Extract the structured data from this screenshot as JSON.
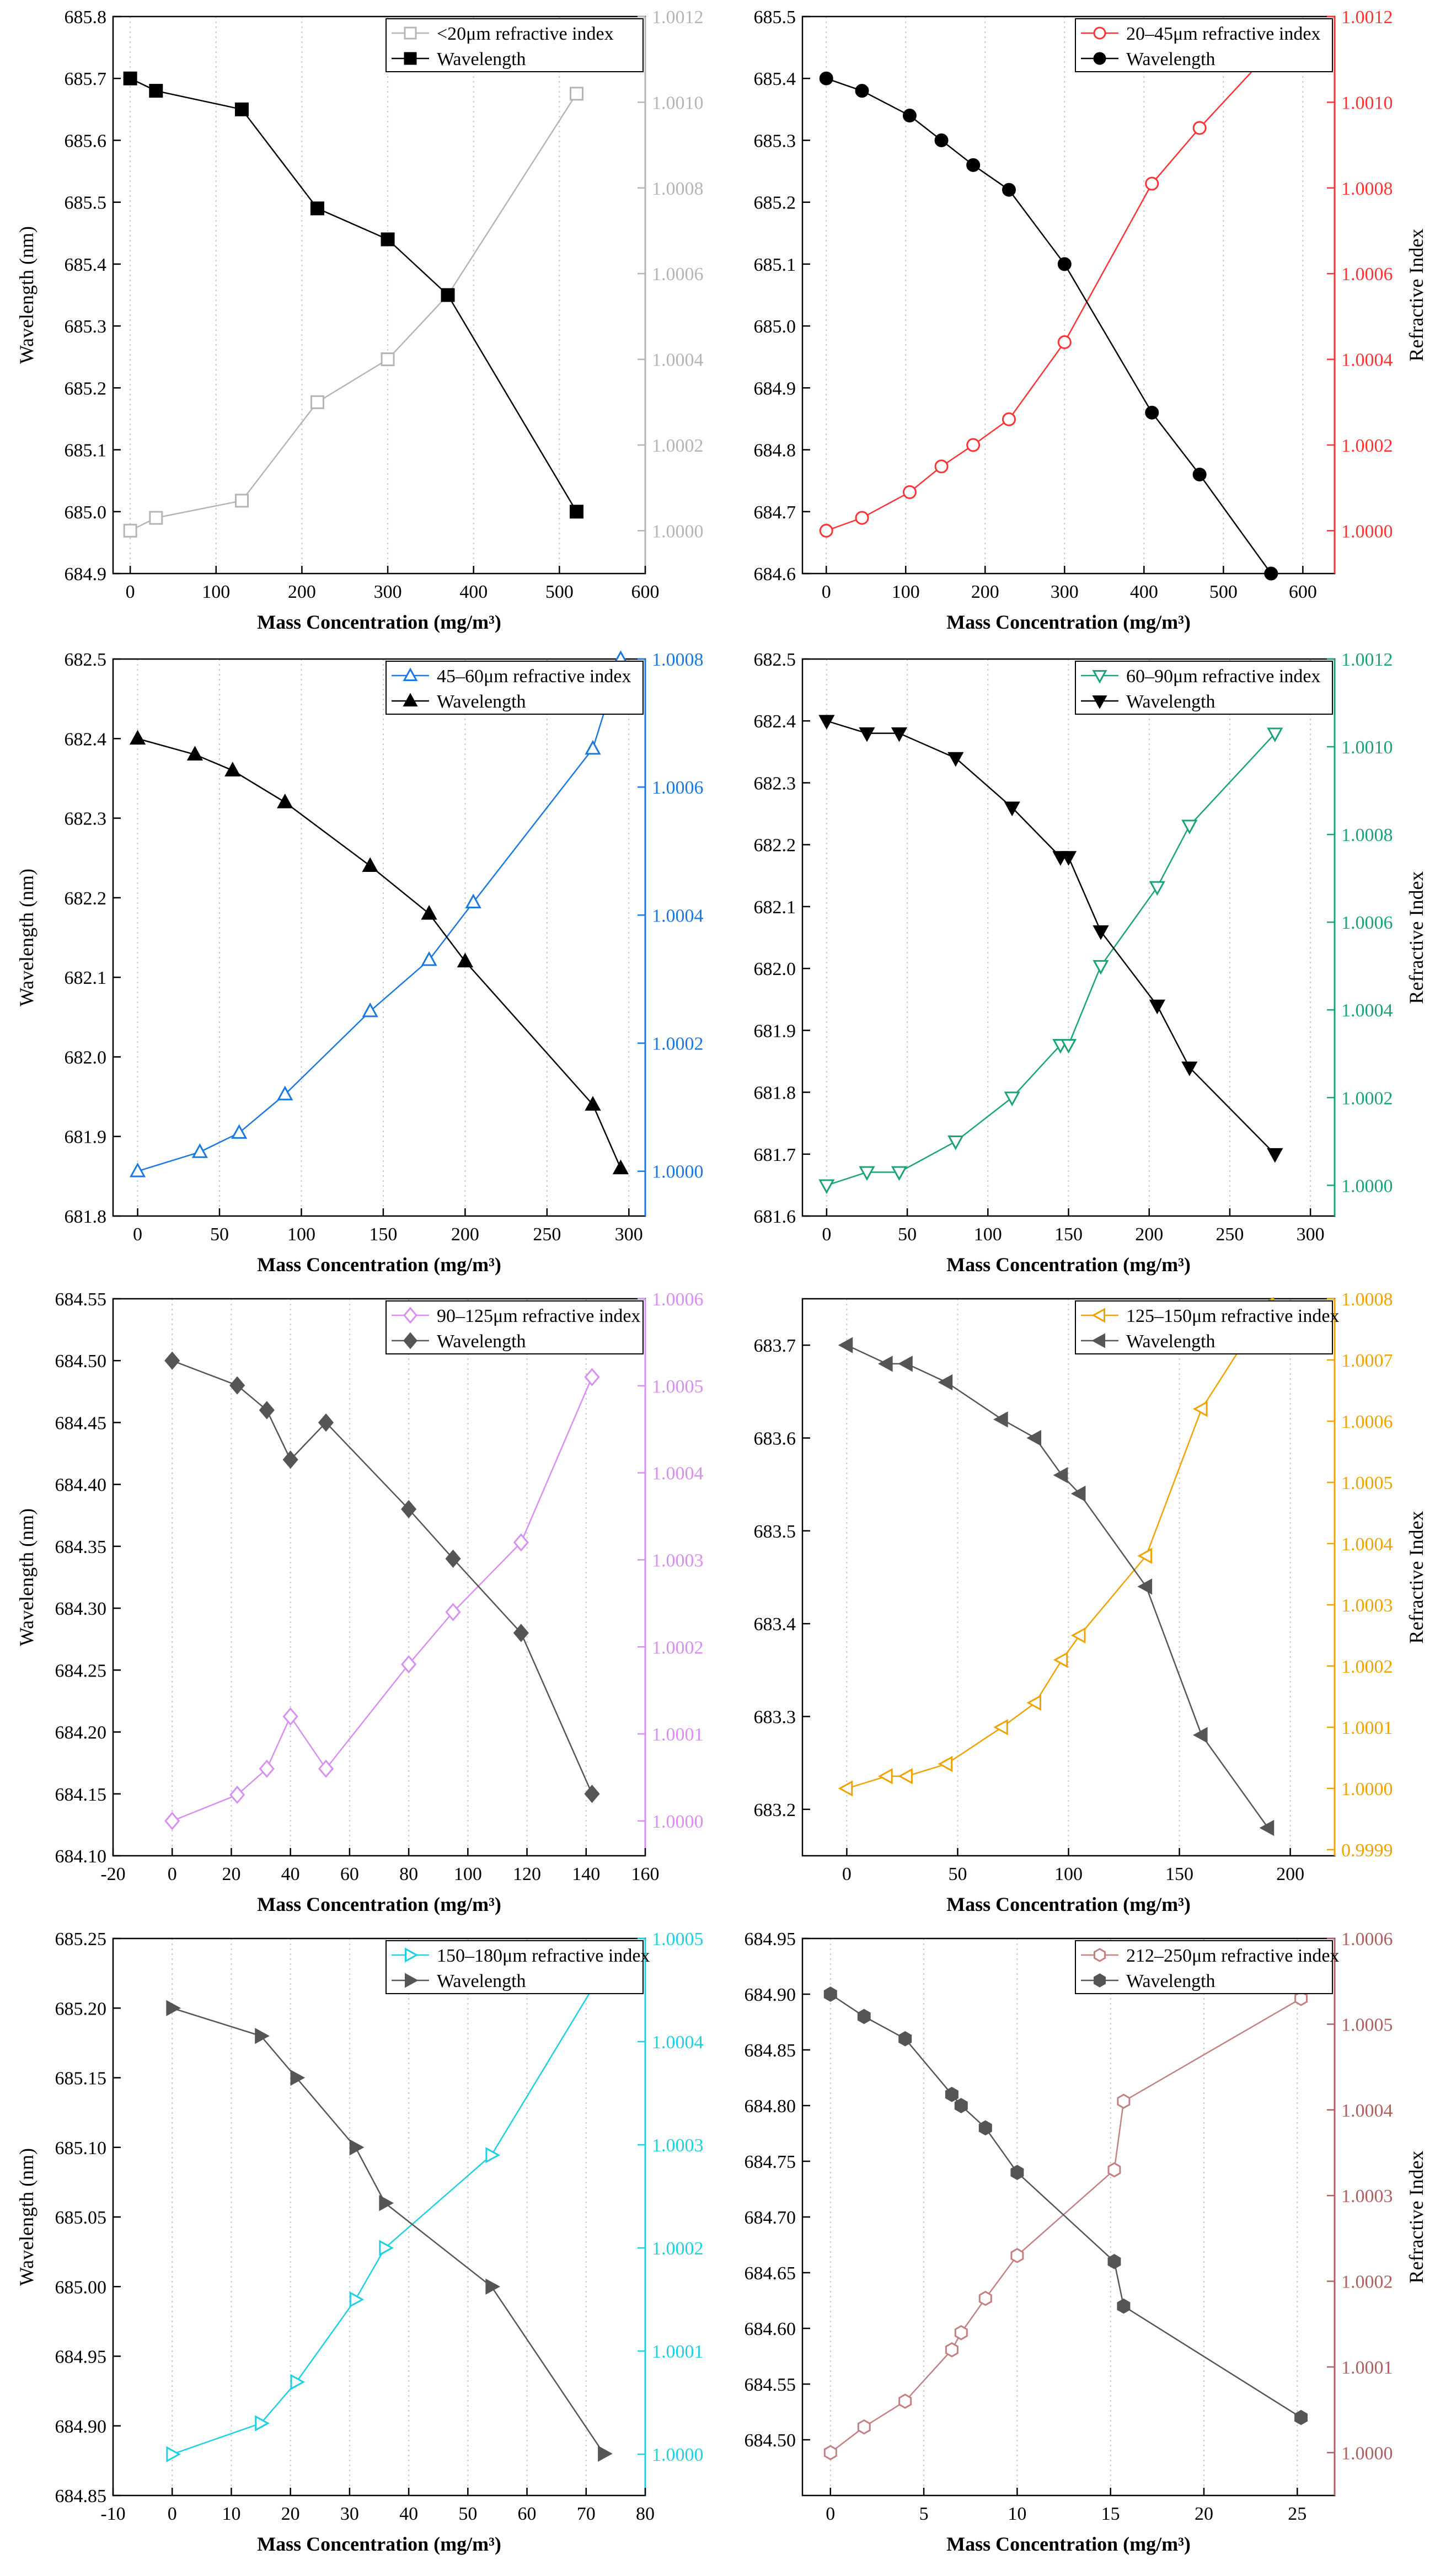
{
  "figure": {
    "chart_data": [
      {
        "type": "line",
        "xlabel": "Mass Concentration (mg/m³)",
        "ylabel": "Wavelength (nm)",
        "y2label": "",
        "xlim": [
          -20,
          600
        ],
        "xticks": [
          0,
          100,
          200,
          300,
          400,
          500,
          600
        ],
        "ylim": [
          684.9,
          685.8
        ],
        "yticks": [
          684.9,
          685.0,
          685.1,
          685.2,
          685.3,
          685.4,
          685.5,
          685.6,
          685.7,
          685.8
        ],
        "ydec": 1,
        "y2lim": [
          0.9999,
          1.0012
        ],
        "y2ticks": [
          1.0,
          1.0002,
          1.0004,
          1.0006,
          1.0008,
          1.001,
          1.0012
        ],
        "y2dec": 4,
        "accent": "#b5b5b5",
        "legend_position": "top-right",
        "series": [
          {
            "name": "<20μm refractive index",
            "axis": "right",
            "marker": "square",
            "filled": false,
            "color": "#b5b5b5",
            "x": [
              0,
              30,
              130,
              218,
              300,
              370,
              520
            ],
            "y": [
              1.0,
              1.00003,
              1.00007,
              1.0003,
              1.0004,
              1.00055,
              1.00102
            ]
          },
          {
            "name": "Wavelength",
            "axis": "left",
            "marker": "square",
            "filled": true,
            "color": "#000000",
            "x": [
              0,
              30,
              130,
              218,
              300,
              370,
              520
            ],
            "y": [
              685.7,
              685.68,
              685.65,
              685.49,
              685.44,
              685.35,
              685.0
            ]
          }
        ]
      },
      {
        "type": "line",
        "xlabel": "Mass Concentration (mg/m³)",
        "ylabel": "",
        "y2label": "Refractive Index",
        "xlim": [
          -30,
          640
        ],
        "xticks": [
          0,
          100,
          200,
          300,
          400,
          500,
          600
        ],
        "ylim": [
          684.6,
          685.5
        ],
        "yticks": [
          684.6,
          684.7,
          684.8,
          684.9,
          685.0,
          685.1,
          685.2,
          685.3,
          685.4,
          685.5
        ],
        "ydec": 1,
        "y2lim": [
          0.9999,
          1.0012
        ],
        "y2ticks": [
          1.0,
          1.0002,
          1.0004,
          1.0006,
          1.0008,
          1.001,
          1.0012
        ],
        "y2dec": 4,
        "accent": "#ff3333",
        "legend_position": "top-right",
        "series": [
          {
            "name": "20–45μm refractive index",
            "axis": "right",
            "marker": "circle",
            "filled": false,
            "color": "#ff3333",
            "x": [
              0,
              45,
              105,
              145,
              185,
              230,
              300,
              410,
              470,
              560
            ],
            "y": [
              1.0,
              1.00003,
              1.00009,
              1.00015,
              1.0002,
              1.00026,
              1.00044,
              1.00081,
              1.00094,
              1.00112
            ]
          },
          {
            "name": "Wavelength",
            "axis": "left",
            "marker": "circle",
            "filled": true,
            "color": "#000000",
            "x": [
              0,
              45,
              105,
              145,
              185,
              230,
              300,
              410,
              470,
              560
            ],
            "y": [
              685.4,
              685.38,
              685.34,
              685.3,
              685.26,
              685.22,
              685.1,
              684.86,
              684.76,
              684.6
            ]
          }
        ]
      },
      {
        "type": "line",
        "xlabel": "Mass Concentration (mg/m³)",
        "ylabel": "Wavelength (nm)",
        "y2label": "",
        "xlim": [
          -15,
          310
        ],
        "xticks": [
          0,
          50,
          100,
          150,
          200,
          250,
          300
        ],
        "ylim": [
          681.8,
          682.5
        ],
        "yticks": [
          681.8,
          681.9,
          682.0,
          682.1,
          682.2,
          682.3,
          682.4,
          682.5
        ],
        "ydec": 1,
        "y2lim": [
          0.99993,
          1.0008
        ],
        "y2ticks": [
          1.0,
          1.0002,
          1.0004,
          1.0006,
          1.0008
        ],
        "y2dec": 4,
        "accent": "#1a78e0",
        "legend_position": "top-right",
        "series": [
          {
            "name": "45–60μm refractive index",
            "axis": "right",
            "marker": "triangle-up",
            "filled": false,
            "color": "#1a78e0",
            "x": [
              0,
              38,
              62,
              90,
              142,
              178,
              205,
              278,
              295
            ],
            "y": [
              1.0,
              1.00003,
              1.00006,
              1.00012,
              1.00025,
              1.00033,
              1.00042,
              1.00066,
              1.0008
            ]
          },
          {
            "name": "Wavelength",
            "axis": "left",
            "marker": "triangle-up",
            "filled": true,
            "color": "#000000",
            "x": [
              0,
              35,
              58,
              90,
              142,
              178,
              200,
              278,
              295
            ],
            "y": [
              682.4,
              682.38,
              682.36,
              682.32,
              682.24,
              682.18,
              682.12,
              681.94,
              681.86
            ]
          }
        ]
      },
      {
        "type": "line",
        "xlabel": "Mass Concentration (mg/m³)",
        "ylabel": "",
        "y2label": "Refractive Index",
        "xlim": [
          -15,
          315
        ],
        "xticks": [
          0,
          50,
          100,
          150,
          200,
          250,
          300
        ],
        "ylim": [
          681.6,
          682.5
        ],
        "yticks": [
          681.6,
          681.7,
          681.8,
          681.9,
          682.0,
          682.1,
          682.2,
          682.3,
          682.4,
          682.5
        ],
        "ydec": 1,
        "y2lim": [
          0.99993,
          1.0012
        ],
        "y2ticks": [
          1.0,
          1.0002,
          1.0004,
          1.0006,
          1.0008,
          1.001,
          1.0012
        ],
        "y2dec": 4,
        "accent": "#1aa37a",
        "legend_position": "top-right",
        "series": [
          {
            "name": "60–90μm refractive index",
            "axis": "right",
            "marker": "triangle-down",
            "filled": false,
            "color": "#1aa37a",
            "x": [
              0,
              25,
              45,
              80,
              115,
              145,
              150,
              170,
              205,
              225,
              278
            ],
            "y": [
              1.0,
              1.00003,
              1.00003,
              1.0001,
              1.0002,
              1.00032,
              1.00032,
              1.0005,
              1.00068,
              1.00082,
              1.00103
            ]
          },
          {
            "name": "Wavelength",
            "axis": "left",
            "marker": "triangle-down",
            "filled": true,
            "color": "#000000",
            "x": [
              0,
              25,
              45,
              80,
              115,
              145,
              150,
              170,
              205,
              225,
              278
            ],
            "y": [
              682.4,
              682.38,
              682.38,
              682.34,
              682.26,
              682.18,
              682.18,
              682.06,
              681.94,
              681.84,
              681.7
            ]
          }
        ]
      },
      {
        "type": "line",
        "xlabel": "Mass Concentration (mg/m³)",
        "ylabel": "Wavelength (nm)",
        "y2label": "",
        "xlim": [
          -20,
          160
        ],
        "xticks": [
          -20,
          0,
          20,
          40,
          60,
          80,
          100,
          120,
          140,
          160
        ],
        "ylim": [
          684.1,
          684.55
        ],
        "yticks": [
          684.1,
          684.15,
          684.2,
          684.25,
          684.3,
          684.35,
          684.4,
          684.45,
          684.5,
          684.55
        ],
        "ydec": 2,
        "y2lim": [
          0.99996,
          1.0006
        ],
        "y2ticks": [
          1.0,
          1.0001,
          1.0002,
          1.0003,
          1.0004,
          1.0005,
          1.0006
        ],
        "y2dec": 4,
        "accent": "#d98ef2",
        "legend_position": "top-right",
        "series": [
          {
            "name": "90–125μm refractive index",
            "axis": "right",
            "marker": "diamond",
            "filled": false,
            "color": "#d98ef2",
            "x": [
              0,
              22,
              32,
              40,
              52,
              80,
              95,
              118,
              142
            ],
            "y": [
              1.0,
              1.00003,
              1.00006,
              1.00012,
              1.00006,
              1.00018,
              1.00024,
              1.00032,
              1.00051
            ]
          },
          {
            "name": "Wavelength",
            "axis": "left",
            "marker": "diamond",
            "filled": true,
            "color": "#555555",
            "x": [
              0,
              22,
              32,
              40,
              52,
              80,
              95,
              118,
              142
            ],
            "y": [
              684.5,
              684.48,
              684.46,
              684.42,
              684.45,
              684.38,
              684.34,
              684.28,
              684.15
            ]
          }
        ]
      },
      {
        "type": "line",
        "xlabel": "Mass Concentration (mg/m³)",
        "ylabel": "",
        "y2label": "Refractive Index",
        "xlim": [
          -20,
          220
        ],
        "xticks": [
          0,
          50,
          100,
          150,
          200
        ],
        "ylim": [
          683.15,
          683.75
        ],
        "yticks": [
          683.2,
          683.3,
          683.4,
          683.5,
          683.6,
          683.7
        ],
        "ydec": 1,
        "y2lim": [
          0.99989,
          1.0008
        ],
        "y2ticks": [
          0.9999,
          1.0,
          1.0001,
          1.0002,
          1.0003,
          1.0004,
          1.0005,
          1.0006,
          1.0007,
          1.0008
        ],
        "y2dec": 4,
        "accent": "#f0a300",
        "legend_position": "top-right",
        "series": [
          {
            "name": "125–150μm refractive index",
            "axis": "right",
            "marker": "triangle-left",
            "filled": false,
            "color": "#f0a300",
            "x": [
              0,
              18,
              27,
              45,
              70,
              85,
              97,
              105,
              135,
              160,
              190
            ],
            "y": [
              1.0,
              1.00002,
              1.00002,
              1.00004,
              1.0001,
              1.00014,
              1.00021,
              1.00025,
              1.00038,
              1.00062,
              1.00079
            ]
          },
          {
            "name": "Wavelength",
            "axis": "left",
            "marker": "triangle-left",
            "filled": true,
            "color": "#555555",
            "x": [
              0,
              18,
              27,
              45,
              70,
              85,
              97,
              105,
              135,
              160,
              190
            ],
            "y": [
              683.7,
              683.68,
              683.68,
              683.66,
              683.62,
              683.6,
              683.56,
              683.54,
              683.44,
              683.28,
              683.18
            ]
          }
        ]
      },
      {
        "type": "line",
        "xlabel": "Mass Concentration (mg/m³)",
        "ylabel": "Wavelength (nm)",
        "y2label": "",
        "xlim": [
          -10,
          80
        ],
        "xticks": [
          -10,
          0,
          10,
          20,
          30,
          40,
          50,
          60,
          70,
          80
        ],
        "ylim": [
          684.85,
          685.25
        ],
        "yticks": [
          684.85,
          684.9,
          684.95,
          685.0,
          685.05,
          685.1,
          685.15,
          685.2,
          685.25
        ],
        "ydec": 2,
        "y2lim": [
          0.99996,
          1.0005
        ],
        "y2ticks": [
          1.0,
          1.0001,
          1.0002,
          1.0003,
          1.0004,
          1.0005
        ],
        "y2dec": 4,
        "accent": "#1fd0e0",
        "legend_position": "top-right",
        "series": [
          {
            "name": "150–180μm refractive index",
            "axis": "right",
            "marker": "triangle-right",
            "filled": false,
            "color": "#1fd0e0",
            "x": [
              0,
              15,
              21,
              31,
              36,
              54,
              73
            ],
            "y": [
              1.0,
              1.00003,
              1.00007,
              1.00015,
              1.0002,
              1.00029,
              1.00047
            ]
          },
          {
            "name": "Wavelength",
            "axis": "left",
            "marker": "triangle-right",
            "filled": true,
            "color": "#555555",
            "x": [
              0,
              15,
              21,
              31,
              36,
              54,
              73
            ],
            "y": [
              685.2,
              685.18,
              685.15,
              685.1,
              685.06,
              685.0,
              684.88
            ]
          }
        ]
      },
      {
        "type": "line",
        "xlabel": "Mass Concentration (mg/m³)",
        "ylabel": "",
        "y2label": "Refractive Index",
        "xlim": [
          -1.5,
          27
        ],
        "xticks": [
          0,
          5,
          10,
          15,
          20,
          25
        ],
        "ylim": [
          684.45,
          684.95
        ],
        "yticks": [
          684.5,
          684.55,
          684.6,
          684.65,
          684.7,
          684.75,
          684.8,
          684.85,
          684.9,
          684.95
        ],
        "ydec": 2,
        "y2lim": [
          0.99995,
          1.0006
        ],
        "y2ticks": [
          1.0,
          1.0001,
          1.0002,
          1.0003,
          1.0004,
          1.0005,
          1.0006
        ],
        "y2dec": 4,
        "accent": "#b06060",
        "legend_position": "top-right",
        "series": [
          {
            "name": "212–250μm refractive index",
            "axis": "right",
            "marker": "hexagon",
            "filled": false,
            "color": "#c48080",
            "x": [
              0,
              1.8,
              4,
              6.5,
              7,
              8.3,
              10,
              15.2,
              15.7,
              25.2
            ],
            "y": [
              1.0,
              1.00003,
              1.00006,
              1.00012,
              1.00014,
              1.00018,
              1.00023,
              1.00033,
              1.00041,
              1.00053
            ]
          },
          {
            "name": "Wavelength",
            "axis": "left",
            "marker": "hexagon",
            "filled": true,
            "color": "#555555",
            "x": [
              0,
              1.8,
              4,
              6.5,
              7,
              8.3,
              10,
              15.2,
              15.7,
              25.2
            ],
            "y": [
              684.9,
              684.88,
              684.86,
              684.81,
              684.8,
              684.78,
              684.74,
              684.66,
              684.62,
              684.52
            ]
          }
        ]
      }
    ]
  }
}
